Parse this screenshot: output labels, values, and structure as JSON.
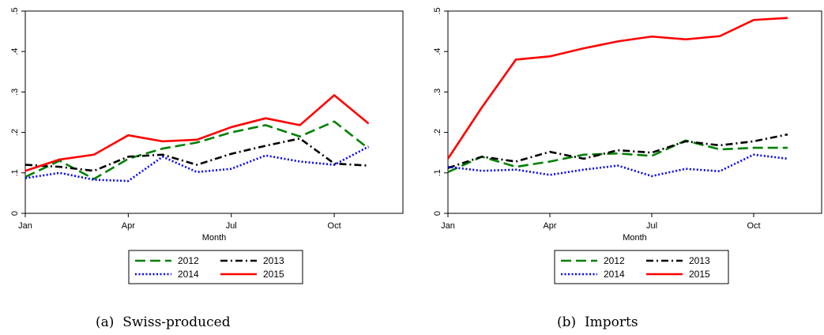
{
  "chart_data": [
    {
      "type": "line",
      "panel_label": "(a)",
      "caption": "Swiss-produced",
      "xlabel": "Month",
      "ylabel": "",
      "xlim": [
        1,
        12
      ],
      "ylim": [
        0,
        0.5
      ],
      "x_ticks": [
        {
          "x": 1,
          "label": "Jan"
        },
        {
          "x": 4,
          "label": "Apr"
        },
        {
          "x": 7,
          "label": "Jul"
        },
        {
          "x": 10,
          "label": "Oct"
        }
      ],
      "y_ticks": [
        {
          "y": 0,
          "label": "0"
        },
        {
          "y": 0.1,
          "label": ".1"
        },
        {
          "y": 0.2,
          "label": ".2"
        },
        {
          "y": 0.3,
          "label": ".3"
        },
        {
          "y": 0.4,
          "label": ".4"
        },
        {
          "y": 0.5,
          "label": ".5"
        }
      ],
      "grid": false,
      "legend_position": "bottom",
      "x": [
        1,
        2,
        3,
        4,
        5,
        6,
        7,
        8,
        9,
        10,
        11
      ],
      "series": [
        {
          "name": "2012",
          "color": "#008000",
          "dash": "long-dash",
          "values": [
            0.09,
            0.13,
            0.085,
            0.135,
            0.16,
            0.175,
            0.2,
            0.218,
            0.19,
            0.227,
            0.16
          ]
        },
        {
          "name": "2013",
          "color": "#000000",
          "dash": "dash-dot",
          "values": [
            0.12,
            0.115,
            0.105,
            0.14,
            0.145,
            0.12,
            0.147,
            0.167,
            0.185,
            0.123,
            0.118
          ]
        },
        {
          "name": "2014",
          "color": "#0000ff",
          "dash": "dot",
          "values": [
            0.087,
            0.1,
            0.083,
            0.08,
            0.14,
            0.102,
            0.11,
            0.143,
            0.128,
            0.12,
            0.165
          ]
        },
        {
          "name": "2015",
          "color": "#ff0000",
          "dash": "solid",
          "values": [
            0.105,
            0.133,
            0.145,
            0.193,
            0.178,
            0.182,
            0.213,
            0.235,
            0.218,
            0.292,
            0.222
          ]
        }
      ]
    },
    {
      "type": "line",
      "panel_label": "(b)",
      "caption": "Imports",
      "xlabel": "Month",
      "ylabel": "",
      "xlim": [
        1,
        12
      ],
      "ylim": [
        0,
        0.5
      ],
      "x_ticks": [
        {
          "x": 1,
          "label": "Jan"
        },
        {
          "x": 4,
          "label": "Apr"
        },
        {
          "x": 7,
          "label": "Jul"
        },
        {
          "x": 10,
          "label": "Oct"
        }
      ],
      "y_ticks": [
        {
          "y": 0,
          "label": "0"
        },
        {
          "y": 0.1,
          "label": ".1"
        },
        {
          "y": 0.2,
          "label": ".2"
        },
        {
          "y": 0.3,
          "label": ".3"
        },
        {
          "y": 0.4,
          "label": ".4"
        },
        {
          "y": 0.5,
          "label": ".5"
        }
      ],
      "grid": false,
      "legend_position": "bottom",
      "x": [
        1,
        2,
        3,
        4,
        5,
        6,
        7,
        8,
        9,
        10,
        11
      ],
      "series": [
        {
          "name": "2012",
          "color": "#008000",
          "dash": "long-dash",
          "values": [
            0.102,
            0.14,
            0.115,
            0.128,
            0.145,
            0.148,
            0.142,
            0.18,
            0.158,
            0.162,
            0.162
          ]
        },
        {
          "name": "2013",
          "color": "#000000",
          "dash": "dash-dot",
          "values": [
            0.112,
            0.14,
            0.128,
            0.152,
            0.135,
            0.156,
            0.15,
            0.178,
            0.168,
            0.178,
            0.195
          ]
        },
        {
          "name": "2014",
          "color": "#0000ff",
          "dash": "dot",
          "values": [
            0.115,
            0.105,
            0.108,
            0.095,
            0.108,
            0.118,
            0.092,
            0.11,
            0.104,
            0.145,
            0.135
          ]
        },
        {
          "name": "2015",
          "color": "#ff0000",
          "dash": "solid",
          "values": [
            0.135,
            0.262,
            0.38,
            0.388,
            0.408,
            0.425,
            0.437,
            0.43,
            0.438,
            0.478,
            0.483
          ]
        }
      ]
    }
  ]
}
